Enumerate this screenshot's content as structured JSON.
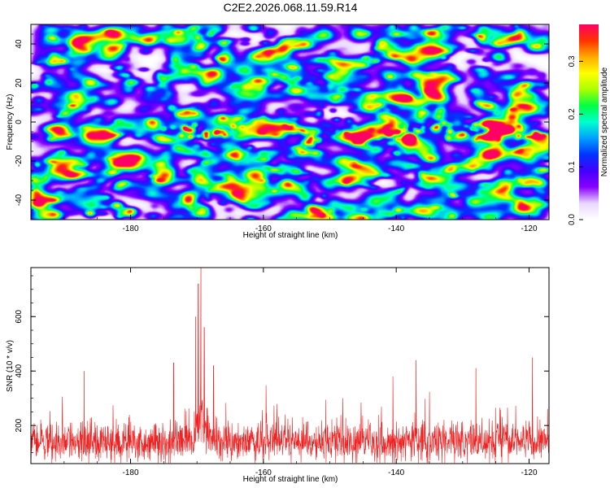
{
  "figure": {
    "title": "C2E2.2026.068.11.59.R14"
  },
  "chart_data": [
    {
      "type": "heatmap",
      "xlabel": "Height of straight line (km)",
      "ylabel": "Frequency (Hz)",
      "xlim": [
        -195,
        -117
      ],
      "ylim": [
        -50,
        50
      ],
      "x_ticks": [
        -180,
        -160,
        -140,
        -120
      ],
      "y_ticks": [
        -40,
        -20,
        0,
        20,
        40
      ],
      "colorbar": {
        "label": "Normalized spectral amplitude",
        "range": [
          0,
          0.37
        ],
        "ticks": [
          0.0,
          0.1,
          0.2,
          0.3
        ],
        "colormap": [
          "#ffffff",
          "#e9d6ff",
          "#8800ff",
          "#4400ff",
          "#0033ff",
          "#00a0ff",
          "#00ffd0",
          "#00ff44",
          "#aaff00",
          "#ffff00",
          "#ffaa00",
          "#ff3300",
          "#ff0066"
        ]
      },
      "noise_level": 0.08,
      "signal_band": {
        "frequency_center": -5,
        "hotspots": [
          {
            "x": -171,
            "f": -4,
            "amp": 0.26
          },
          {
            "x": -167,
            "f": -5,
            "amp": 0.18
          },
          {
            "x": -156,
            "f": -3,
            "amp": 0.12
          },
          {
            "x": -153,
            "f": -9,
            "amp": 0.14
          },
          {
            "x": -145,
            "f": -8,
            "amp": 0.12
          },
          {
            "x": -141,
            "f": -6,
            "amp": 0.16
          },
          {
            "x": -138,
            "f": -7,
            "amp": 0.34
          },
          {
            "x": -134,
            "f": -3,
            "amp": 0.2
          },
          {
            "x": -130,
            "f": -6,
            "amp": 0.22
          },
          {
            "x": -126,
            "f": -7,
            "amp": 0.2
          },
          {
            "x": -123,
            "f": -4,
            "amp": 0.25
          },
          {
            "x": -119,
            "f": -6,
            "amp": 0.14
          }
        ]
      }
    },
    {
      "type": "line",
      "xlabel": "Height of straight line (km)",
      "ylabel": "SNR (10 * v/v)",
      "xlim": [
        -195,
        -117
      ],
      "ylim": [
        60,
        780
      ],
      "x_ticks": [
        -180,
        -160,
        -140,
        -120
      ],
      "y_ticks": [
        200,
        400,
        600
      ],
      "color": "#ee2222",
      "baseline_mean": 140,
      "noise_spread": 55,
      "peaks": [
        {
          "x": -169.8,
          "y": 720
        },
        {
          "x": -169.4,
          "y": 780
        },
        {
          "x": -170.2,
          "y": 600
        },
        {
          "x": -168.9,
          "y": 560
        },
        {
          "x": -173.5,
          "y": 430
        },
        {
          "x": -167.5,
          "y": 420
        },
        {
          "x": -187.0,
          "y": 400
        },
        {
          "x": -137.0,
          "y": 440
        },
        {
          "x": -119.5,
          "y": 450
        },
        {
          "x": -140.5,
          "y": 380
        },
        {
          "x": -128.0,
          "y": 410
        }
      ],
      "sample_count": 1900
    }
  ]
}
